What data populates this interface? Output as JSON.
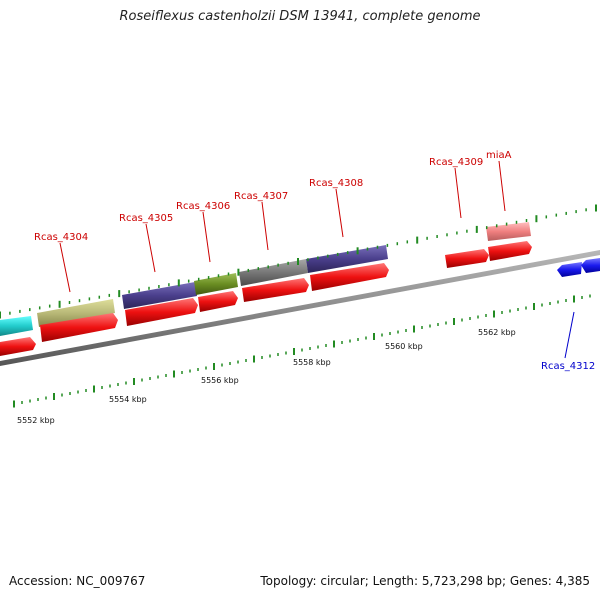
{
  "title": "Roseiflexus castenholzii DSM 13941, complete genome",
  "footer": {
    "accession": "Accession: NC_009767",
    "topology": "Topology: circular; Length: 5,723,298 bp; Genes: 4,385"
  },
  "colors": {
    "backbone": "#8c8c8c",
    "tick": "#228b22",
    "red_gene": "#ee1111",
    "blue_gene": "#1a1aee",
    "label_red": "#cc0000",
    "label_blue": "#0000cc"
  },
  "scale": {
    "unit": "kbp",
    "major_ticks": [
      {
        "label": "5552 kbp"
      },
      {
        "label": "5554 kbp"
      },
      {
        "label": "5556 kbp"
      },
      {
        "label": "5558 kbp"
      },
      {
        "label": "5560 kbp"
      },
      {
        "label": "5562 kbp"
      }
    ]
  },
  "gene_labels": [
    {
      "id": "rcas_4304",
      "text": "Rcas_4304",
      "color": "red"
    },
    {
      "id": "rcas_4305",
      "text": "Rcas_4305",
      "color": "red"
    },
    {
      "id": "rcas_4306",
      "text": "Rcas_4306",
      "color": "red"
    },
    {
      "id": "rcas_4307",
      "text": "Rcas_4307",
      "color": "red"
    },
    {
      "id": "rcas_4308",
      "text": "Rcas_4308",
      "color": "red"
    },
    {
      "id": "rcas_4309",
      "text": "Rcas_4309",
      "color": "red"
    },
    {
      "id": "miaa",
      "text": "miaA",
      "color": "red"
    },
    {
      "id": "rcas_4312",
      "text": "Rcas_4312",
      "color": "blue"
    }
  ]
}
